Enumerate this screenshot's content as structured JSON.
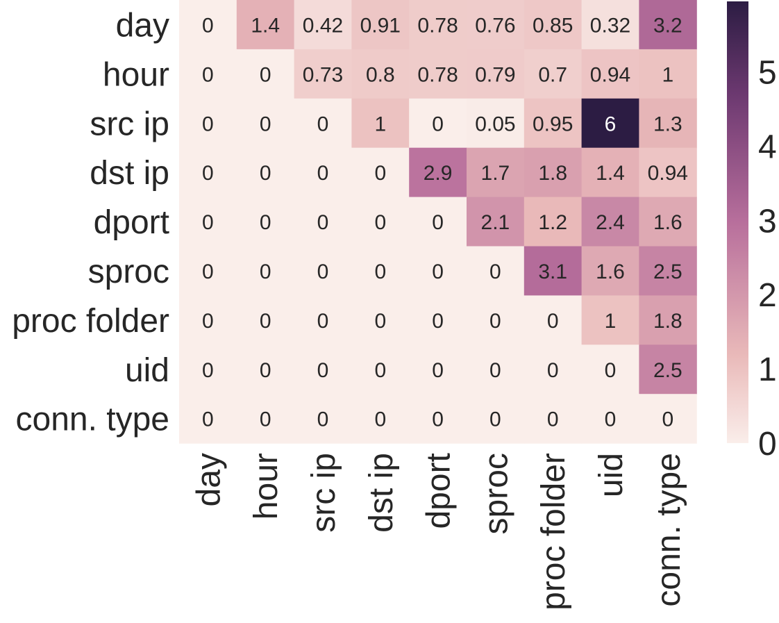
{
  "chart_data": {
    "type": "heatmap",
    "title": "",
    "xlabel": "",
    "ylabel": "",
    "rows": [
      "day",
      "hour",
      "src ip",
      "dst ip",
      "dport",
      "sproc",
      "proc folder",
      "uid",
      "conn. type"
    ],
    "columns": [
      "day",
      "hour",
      "src ip",
      "dst ip",
      "dport",
      "sproc",
      "proc folder",
      "uid",
      "conn. type"
    ],
    "values": [
      [
        0,
        1.4,
        0.42,
        0.91,
        0.78,
        0.76,
        0.85,
        0.32,
        3.2
      ],
      [
        0,
        0,
        0.73,
        0.8,
        0.78,
        0.79,
        0.7,
        0.94,
        1
      ],
      [
        0,
        0,
        0,
        1,
        0,
        0.05,
        0.95,
        6,
        1.3
      ],
      [
        0,
        0,
        0,
        0,
        2.9,
        1.7,
        1.8,
        1.4,
        0.94
      ],
      [
        0,
        0,
        0,
        0,
        0,
        2.1,
        1.2,
        2.4,
        1.6
      ],
      [
        0,
        0,
        0,
        0,
        0,
        0,
        3.1,
        1.6,
        2.5
      ],
      [
        0,
        0,
        0,
        0,
        0,
        0,
        0,
        1,
        1.8
      ],
      [
        0,
        0,
        0,
        0,
        0,
        0,
        0,
        0,
        2.5
      ],
      [
        0,
        0,
        0,
        0,
        0,
        0,
        0,
        0,
        0
      ]
    ],
    "colorbar": {
      "min": 0,
      "max": 6,
      "ticks": [
        "0",
        "1",
        "2",
        "3",
        "4",
        "5"
      ]
    },
    "colormap": {
      "low": "#faeeea",
      "mid1": "#e9b9b9",
      "mid2": "#b86f9c",
      "mid3": "#6f3a72",
      "high": "#2c1c43"
    },
    "annotation_color_light": "#262626",
    "annotation_color_dark": "#ffffff"
  }
}
